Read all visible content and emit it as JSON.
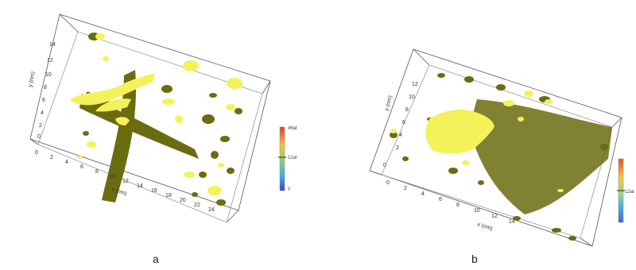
{
  "figure": {
    "panel_a": {
      "label": "a",
      "x_axis_title": "x (nm)",
      "y_axis_title": "y (nm)",
      "x_ticks": [
        "0",
        "2",
        "4",
        "6",
        "8",
        "10",
        "12",
        "14",
        "16",
        "18",
        "20",
        "22",
        "24"
      ],
      "y_ticks": [
        "0",
        "2",
        "4",
        "6",
        "8",
        "10",
        "12",
        "14"
      ],
      "colorbar": {
        "top": "46at",
        "mid": "12at",
        "bottom": "0"
      }
    },
    "panel_b": {
      "label": "b",
      "x_axis_title": "x (nm)",
      "y_axis_title": "y (nm)",
      "x_ticks": [
        "0",
        "2",
        "4",
        "6",
        "8",
        "10",
        "12",
        "14"
      ],
      "y_ticks": [
        "0",
        "2",
        "4",
        "6",
        "8",
        "10",
        "12"
      ],
      "colorbar": {
        "mid": "12at"
      }
    }
  },
  "colors": {
    "isosurface_bright": "#f4f258",
    "isosurface_dark": "#6b6b10",
    "frame": "#555555"
  }
}
